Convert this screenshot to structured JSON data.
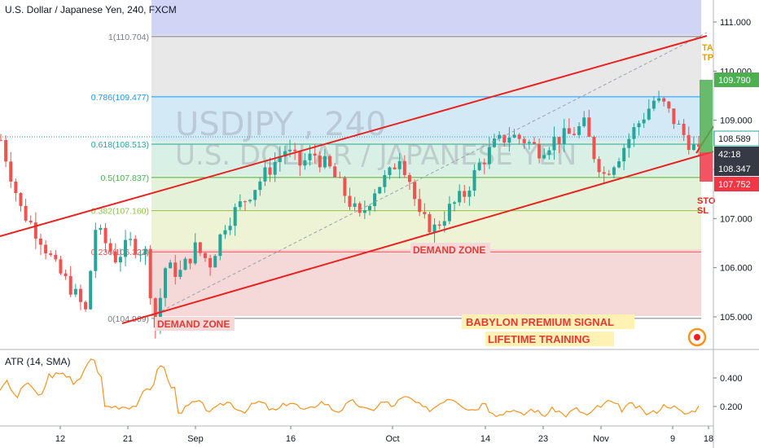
{
  "header": {
    "title": "U.S. Dollar / Japanese Yen, 240, FXCM",
    "atr_label": "ATR (14, SMA)"
  },
  "watermark": {
    "line1": "USDJPY , 240",
    "line2": "U.S. DOLLAR / JAPANESE YEN"
  },
  "annotations": {
    "demand_zone_1": "DEMAND ZONE",
    "demand_zone_2": "DEMAND ZONE",
    "banner_1": "BABYLON PREMIUM SIGNAL",
    "banner_2": "LIFETIME TRAINING",
    "edge_tp_1": "TA",
    "edge_tp_2": "TP",
    "edge_sl_1": "STO",
    "edge_sl_2": "SL"
  },
  "price_badges": [
    {
      "value": "109.790",
      "bg": "#4caf50",
      "fg": "#ffffff"
    },
    {
      "value": "108.589",
      "bg": "#ffffff",
      "fg": "#131722",
      "border": "#26a69a"
    },
    {
      "value": "42:18",
      "bg": "#363a45",
      "fg": "#ffffff"
    },
    {
      "value": "108.347",
      "bg": "#363a45",
      "fg": "#ffffff"
    },
    {
      "value": "107.752",
      "bg": "#f23645",
      "fg": "#ffffff"
    }
  ],
  "atr_badges": [],
  "colors": {
    "up": "#26a69a",
    "down": "#ef5350",
    "channel": "#e8231f",
    "atr": "#f7931e",
    "tp_box": "#4caf50",
    "sl_box": "#f23645"
  },
  "chart_data": {
    "type": "candlestick",
    "title": "U.S. Dollar / Japanese Yen, 240, FXCM",
    "y_axis": {
      "ticks": [
        "111.000",
        "110.000",
        "109.000",
        "108.000",
        "107.000",
        "106.000",
        "105.000"
      ],
      "range": [
        104.6,
        111.4
      ]
    },
    "x_axis": {
      "ticks": [
        "12",
        "21",
        "Sep",
        "16",
        "Oct",
        "14",
        "23",
        "Nov",
        "9",
        "18"
      ]
    },
    "fibonacci": [
      {
        "label": "1(110.704)",
        "level": 110.704,
        "color": "#787b86"
      },
      {
        "label": "0.786(109.477)",
        "level": 109.477,
        "color": "#2196f3"
      },
      {
        "label": "0.618(108.513)",
        "level": 108.513,
        "color": "#26a69a"
      },
      {
        "label": "0.5(107.837)",
        "level": 107.837,
        "color": "#4caf50"
      },
      {
        "label": "0.382(107.160)",
        "level": 107.16,
        "color": "#8bc34a"
      },
      {
        "label": "0.236(106.322)",
        "level": 106.322,
        "color": "#ef5350"
      },
      {
        "label": "0(104.969)",
        "level": 104.969,
        "color": "#787b86"
      }
    ],
    "close_path": [
      [
        0,
        108.6
      ],
      [
        4,
        107.2
      ],
      [
        8,
        106.6
      ],
      [
        11,
        106.0
      ],
      [
        14,
        105.6
      ],
      [
        17,
        105.1
      ],
      [
        19,
        106.8
      ],
      [
        23,
        106.2
      ],
      [
        26,
        106.5
      ],
      [
        29,
        106.3
      ],
      [
        31,
        104.8
      ],
      [
        33,
        106.0
      ],
      [
        36,
        105.9
      ],
      [
        39,
        106.4
      ],
      [
        42,
        106.1
      ],
      [
        45,
        106.9
      ],
      [
        49,
        107.4
      ],
      [
        53,
        107.9
      ],
      [
        57,
        108.4
      ],
      [
        60,
        108.1
      ],
      [
        63,
        108.3
      ],
      [
        66,
        108.0
      ],
      [
        69,
        107.5
      ],
      [
        72,
        107.0
      ],
      [
        75,
        107.6
      ],
      [
        78,
        107.9
      ],
      [
        80,
        108.3
      ],
      [
        82,
        107.8
      ],
      [
        84,
        107.0
      ],
      [
        87,
        106.8
      ],
      [
        90,
        107.2
      ],
      [
        93,
        107.5
      ],
      [
        96,
        108.1
      ],
      [
        99,
        108.5
      ],
      [
        102,
        108.7
      ],
      [
        105,
        108.6
      ],
      [
        108,
        108.4
      ],
      [
        111,
        108.6
      ],
      [
        114,
        108.7
      ],
      [
        117,
        108.9
      ],
      [
        119,
        108.3
      ],
      [
        121,
        107.9
      ],
      [
        124,
        108.3
      ],
      [
        127,
        108.8
      ],
      [
        129,
        109.1
      ],
      [
        131,
        109.4
      ],
      [
        133,
        109.3
      ],
      [
        135,
        109.0
      ],
      [
        137,
        108.7
      ],
      [
        140,
        108.3
      ]
    ],
    "atr": {
      "ticks": [
        "0.400",
        "0.200"
      ],
      "range": [
        0.09,
        0.53
      ]
    }
  }
}
